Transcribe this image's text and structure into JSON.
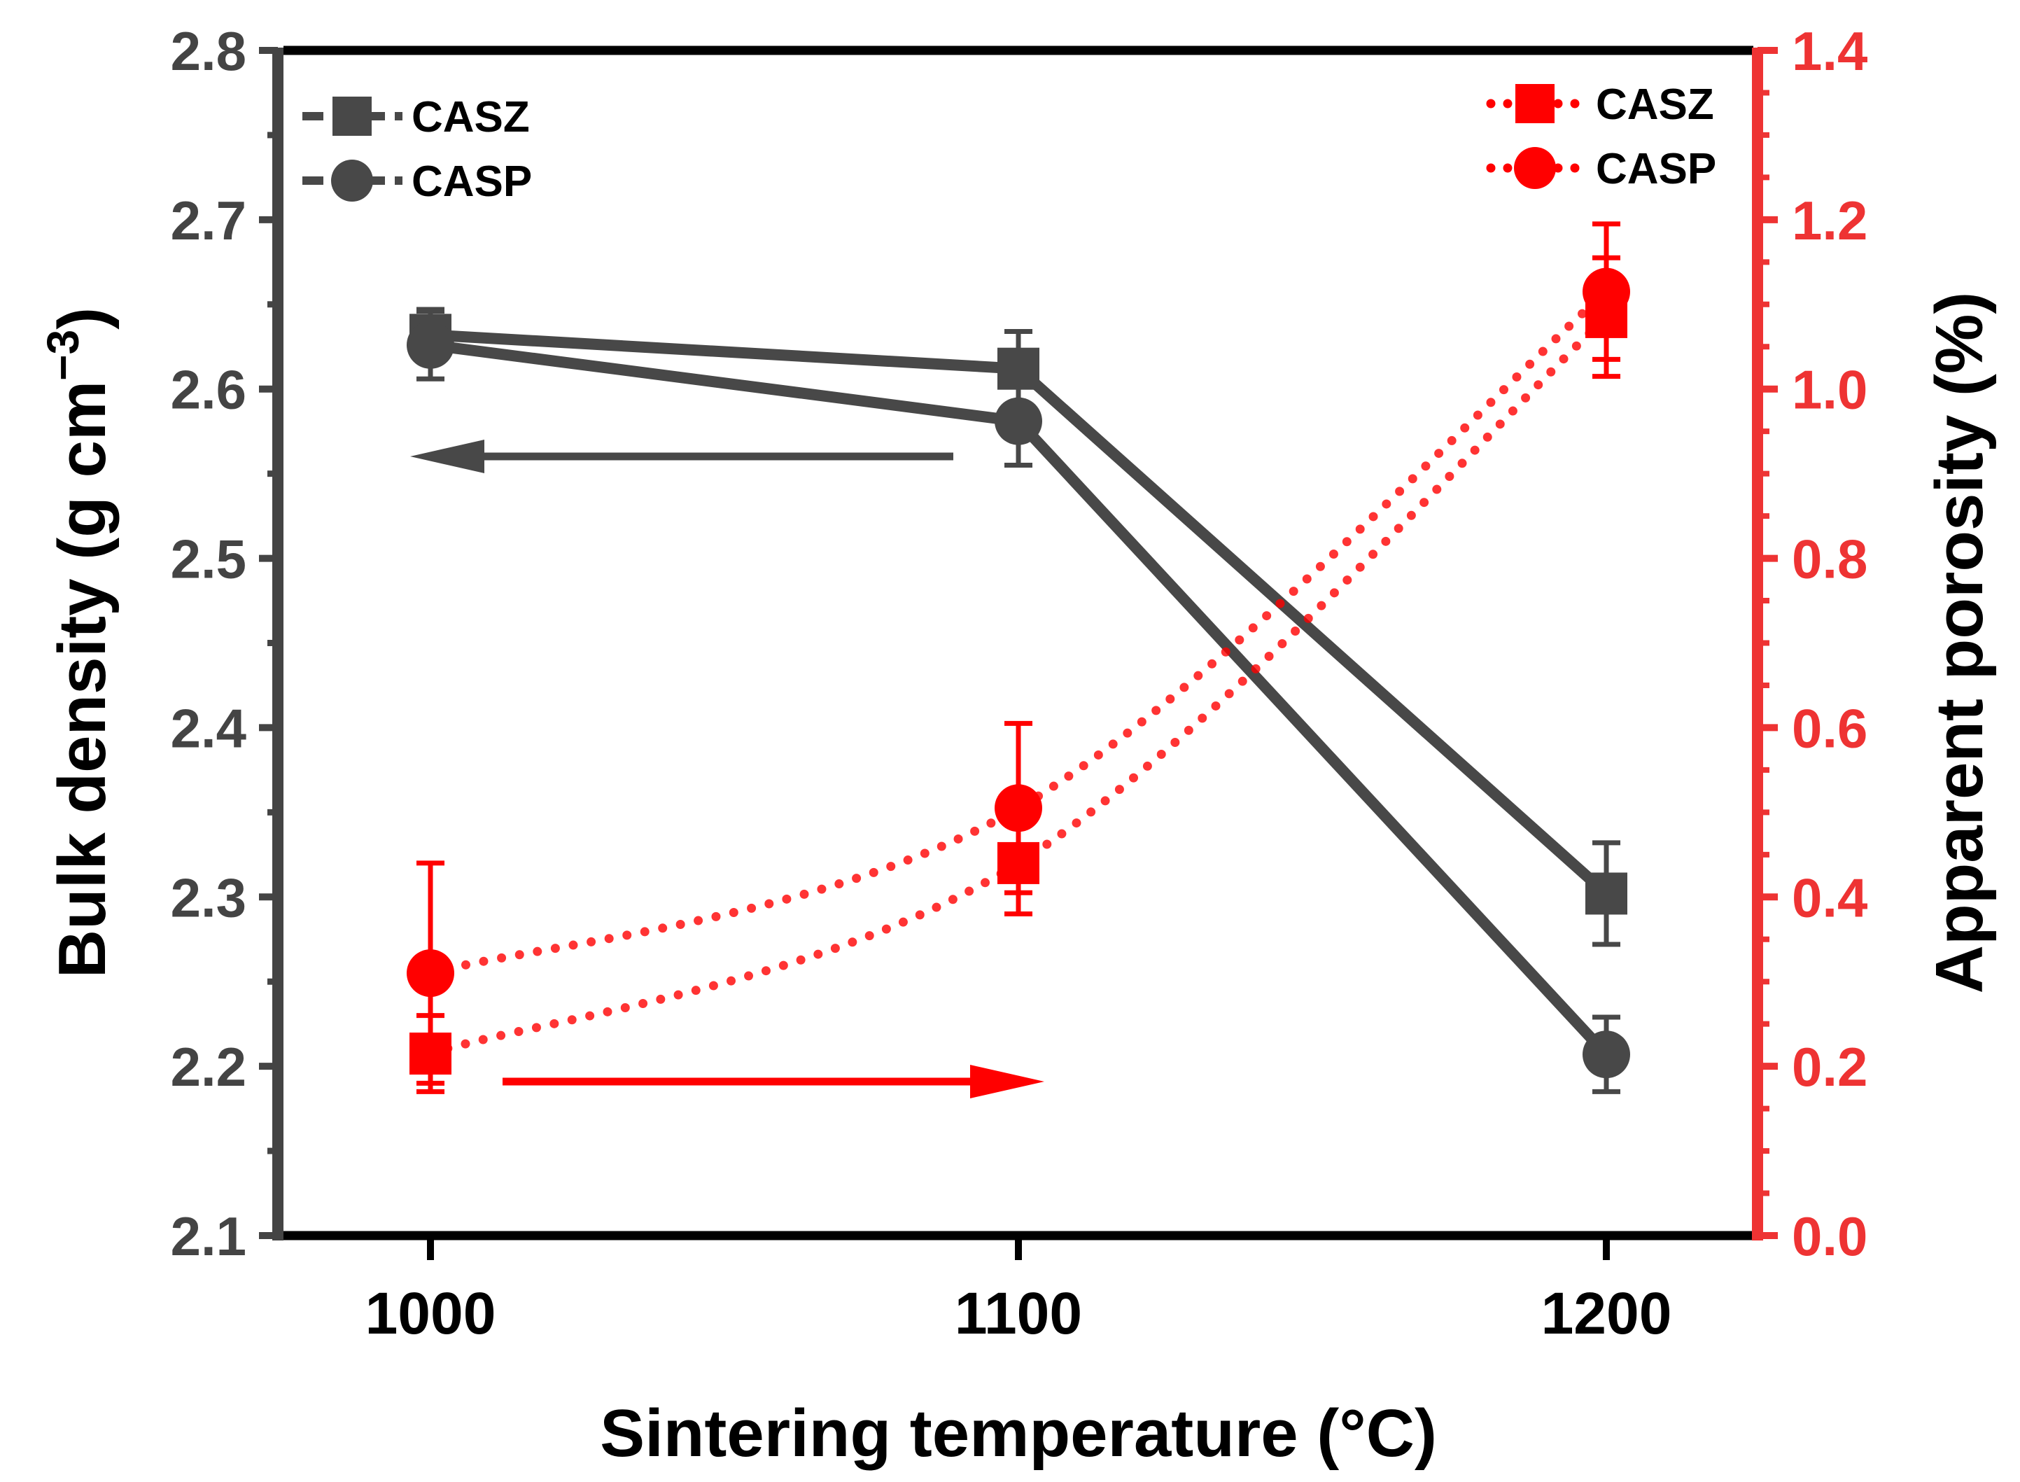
{
  "chart_data": {
    "type": "line",
    "title": "",
    "xlabel": "Sintering temperature (°C)",
    "ylabel_left": "Bulk density (g cm",
    "ylabel_left_sup": "−3",
    "ylabel_left_close": ")",
    "ylabel_right": "Apparent porosity (%)",
    "x": [
      1000,
      1100,
      1200
    ],
    "x_ticks": [
      "1000",
      "1100",
      "1200"
    ],
    "xlim": [
      975,
      1225
    ],
    "ylim_left": [
      2.1,
      2.8
    ],
    "ylim_right": [
      0.0,
      1.4
    ],
    "y_ticks_left": [
      "2.1",
      "2.2",
      "2.3",
      "2.4",
      "2.5",
      "2.6",
      "2.7",
      "2.8"
    ],
    "y_ticks_right": [
      "0.0",
      "0.2",
      "0.4",
      "0.6",
      "0.8",
      "1.0",
      "1.2",
      "1.4"
    ],
    "colors": {
      "density": "#484848",
      "porosity": "#ff0000",
      "right_axis": "#ee3333"
    },
    "series": [
      {
        "name": "CASZ",
        "axis": "left",
        "marker": "square",
        "line": "solid",
        "values": [
          2.632,
          2.612,
          2.302
        ],
        "errors": [
          0.015,
          0.022,
          0.03
        ]
      },
      {
        "name": "CASP",
        "axis": "left",
        "marker": "circle",
        "line": "solid",
        "values": [
          2.626,
          2.581,
          2.207
        ],
        "errors": [
          0.02,
          0.026,
          0.022
        ]
      },
      {
        "name": "CASZ",
        "axis": "right",
        "marker": "square",
        "line": "dotted",
        "values": [
          0.215,
          0.44,
          1.085
        ],
        "errors": [
          0.045,
          0.06,
          0.07
        ]
      },
      {
        "name": "CASP",
        "axis": "right",
        "marker": "circle",
        "line": "dotted",
        "values": [
          0.31,
          0.505,
          1.115
        ],
        "errors": [
          0.13,
          0.1,
          0.08
        ]
      }
    ],
    "legend_left": [
      "CASZ",
      "CASP"
    ],
    "legend_right": [
      "CASZ",
      "CASP"
    ],
    "legend_placement": [
      "top-left",
      "top-right"
    ],
    "annotations": [
      "left arrow points to density axis",
      "right arrow points to porosity axis"
    ],
    "grid": false
  }
}
